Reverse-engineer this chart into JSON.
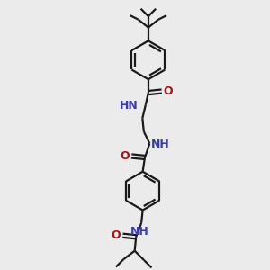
{
  "bg_color": "#ebebeb",
  "bond_color": "#1a1a1a",
  "N_color": "#3a3ab0",
  "O_color": "#b01010",
  "linewidth": 1.6,
  "figsize": [
    3.0,
    3.0
  ],
  "dpi": 100,
  "xlim": [
    0,
    10
  ],
  "ylim": [
    0,
    10
  ]
}
